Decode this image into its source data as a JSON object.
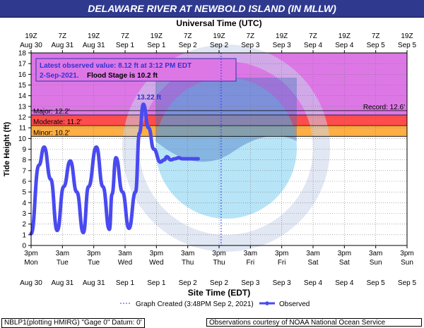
{
  "header": {
    "title": "DELAWARE RIVER AT NEWBOLD ISLAND (IN MLLW)"
  },
  "chart_data": {
    "type": "line",
    "top_axis_label": "Universal Time (UTC)",
    "xlabel": "Site Time (EDT)",
    "ylabel": "Tide Height (ft)",
    "ylim": [
      0,
      18
    ],
    "yticks": [
      0,
      1,
      2,
      3,
      4,
      5,
      6,
      7,
      8,
      9,
      10,
      11,
      12,
      13,
      14,
      15,
      16,
      17,
      18
    ],
    "top_ticks": [
      [
        "19Z",
        "Aug 30"
      ],
      [
        "7Z",
        "Aug 31"
      ],
      [
        "19Z",
        "Aug 31"
      ],
      [
        "7Z",
        "Sep 1"
      ],
      [
        "19Z",
        "Sep 1"
      ],
      [
        "7Z",
        "Sep 2"
      ],
      [
        "19Z",
        "Sep 2"
      ],
      [
        "7Z",
        "Sep 3"
      ],
      [
        "19Z",
        "Sep 3"
      ],
      [
        "7Z",
        "Sep 4"
      ],
      [
        "19Z",
        "Sep 4"
      ],
      [
        "7Z",
        "Sep 5"
      ],
      [
        "19Z",
        "Sep 5"
      ]
    ],
    "bottom_ticks": [
      [
        "3pm",
        "Mon",
        "Aug 30"
      ],
      [
        "3am",
        "Tue",
        "Aug 31"
      ],
      [
        "3pm",
        "Tue",
        "Aug 31"
      ],
      [
        "3am",
        "Wed",
        "Sep 1"
      ],
      [
        "3pm",
        "Wed",
        "Sep 1"
      ],
      [
        "3am",
        "Thu",
        "Sep 2"
      ],
      [
        "3pm",
        "Thu",
        "Sep 2"
      ],
      [
        "3am",
        "Fri",
        "Sep 3"
      ],
      [
        "3pm",
        "Fri",
        "Sep 3"
      ],
      [
        "3am",
        "Sat",
        "Sep 4"
      ],
      [
        "3pm",
        "Sat",
        "Sep 4"
      ],
      [
        "3am",
        "Sun",
        "Sep 5"
      ],
      [
        "3pm",
        "Sun",
        "Sep 5"
      ]
    ],
    "flood_stages": [
      {
        "name": "Record",
        "label": "Record: 12.6'",
        "value": 12.6,
        "color": "#cc44cc"
      },
      {
        "name": "Major",
        "label": "Major: 12.2'",
        "value": 12.2,
        "color": "#cc44cc"
      },
      {
        "name": "Moderate",
        "label": "Moderate: 11.2'",
        "value": 11.2,
        "color": "#ff3333"
      },
      {
        "name": "Minor",
        "label": "Minor: 10.2'",
        "value": 10.2,
        "color": "#ff9933"
      }
    ],
    "series": [
      {
        "name": "Observed",
        "color": "#4a4af0",
        "x_hours": [
          0,
          3,
          5,
          7.5,
          10,
          12.5,
          15,
          17.5,
          20,
          22,
          25,
          27.5,
          30,
          31,
          32.5,
          35,
          37.5,
          40,
          41.5,
          43,
          45,
          47,
          49.5,
          51,
          52,
          53.5,
          55,
          56.5,
          58,
          60,
          61,
          62,
          63,
          64
        ],
        "y": [
          1.1,
          7.5,
          9.2,
          6.2,
          1.4,
          5.5,
          7.9,
          5,
          1.2,
          5.5,
          9.2,
          5.5,
          1.5,
          4.8,
          8.2,
          5,
          1.6,
          5,
          10.5,
          13.2,
          11,
          9,
          7.8,
          8,
          8.3,
          8.0,
          8.1,
          8.2,
          8.1,
          8.1,
          8.1,
          8.1,
          8.1,
          8.1
        ]
      }
    ],
    "peak_label": "13.22 ft",
    "graph_created_hour": 72.8,
    "observation_box": {
      "line1": "Latest observed value: 8.12 ft at 3:12 PM EDT",
      "line2": "2-Sep-2021.",
      "line2b": "Flood Stage is 10.2 ft"
    },
    "legend": {
      "graph_created": "Graph Created (3:48PM Sep 2, 2021)",
      "observed": "Observed"
    }
  },
  "footer": {
    "left": "NBLP1(plotting HMIRG) \"Gage 0\" Datum: 0'",
    "right": "Observations courtesy of NOAA National Ocean Service"
  }
}
